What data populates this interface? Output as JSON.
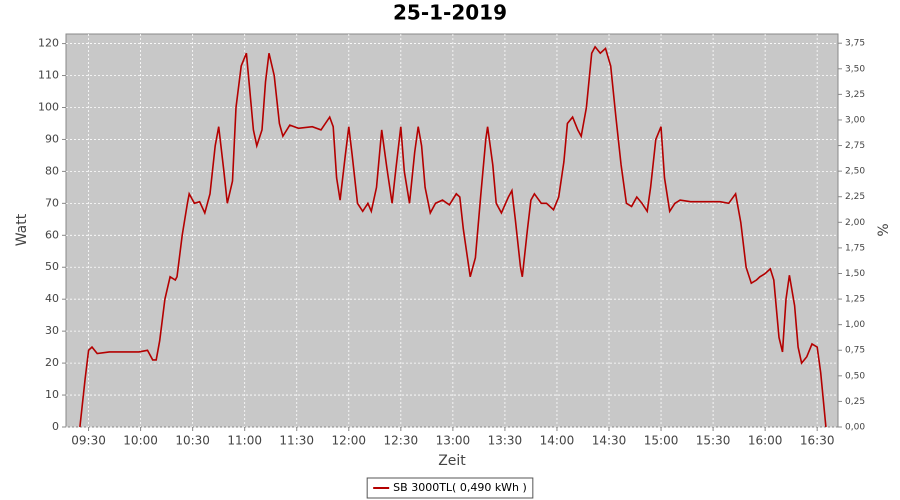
{
  "chart_data": {
    "type": "line",
    "title": "25-1-2019",
    "x_label": "Zeit",
    "y_label": "Watt",
    "y2_label": "%",
    "x": [
      "09:25",
      "09:28",
      "09:30",
      "09:32",
      "09:35",
      "09:42",
      "09:59",
      "10:04",
      "10:07",
      "10:09",
      "10:11",
      "10:14",
      "10:17",
      "10:20",
      "10:21",
      "10:24",
      "10:27",
      "10:28",
      "10:31",
      "10:34",
      "10:37",
      "10:40",
      "10:43",
      "10:45",
      "10:48",
      "10:50",
      "10:53",
      "10:55",
      "10:58",
      "11:01",
      "11:03",
      "11:05",
      "11:07",
      "11:10",
      "11:12",
      "11:14",
      "11:17",
      "11:20",
      "11:22",
      "11:26",
      "11:31",
      "11:39",
      "11:44",
      "11:49",
      "11:51",
      "11:53",
      "11:55",
      "11:58",
      "12:00",
      "12:02",
      "12:05",
      "12:08",
      "12:11",
      "12:13",
      "12:16",
      "12:19",
      "12:22",
      "12:25",
      "12:27",
      "12:30",
      "12:32",
      "12:35",
      "12:38",
      "12:40",
      "12:42",
      "12:44",
      "12:47",
      "12:50",
      "12:54",
      "12:58",
      "13:02",
      "13:04",
      "13:06",
      "13:10",
      "13:13",
      "13:16",
      "13:19",
      "13:20",
      "13:23",
      "13:25",
      "13:28",
      "13:32",
      "13:34",
      "13:36",
      "13:39",
      "13:40",
      "13:43",
      "13:45",
      "13:47",
      "13:51",
      "13:54",
      "13:58",
      "14:01",
      "14:04",
      "14:06",
      "14:09",
      "14:12",
      "14:14",
      "14:17",
      "14:20",
      "14:22",
      "14:25",
      "14:28",
      "14:31",
      "14:34",
      "14:37",
      "14:40",
      "14:43",
      "14:46",
      "14:49",
      "14:52",
      "14:54",
      "14:57",
      "15:00",
      "15:02",
      "15:05",
      "15:08",
      "15:11",
      "15:17",
      "15:34",
      "15:39",
      "15:43",
      "15:46",
      "15:49",
      "15:52",
      "15:55",
      "15:57",
      "16:00",
      "16:03",
      "16:05",
      "16:08",
      "16:10",
      "16:12",
      "16:14",
      "16:17",
      "16:19",
      "16:21",
      "16:24",
      "16:27",
      "16:30",
      "16:32",
      "16:35"
    ],
    "series": [
      {
        "name": "SB 3000TL( 0,490 kWh )",
        "color": "#b40000",
        "values": [
          0,
          15,
          24,
          25,
          23,
          23.5,
          23.5,
          24,
          21,
          21,
          27,
          40,
          47,
          46,
          47,
          60,
          70,
          73,
          70,
          70.5,
          67,
          73,
          88,
          94,
          80,
          70,
          77,
          100,
          113,
          117,
          105,
          93,
          88,
          93,
          108,
          117,
          110,
          95,
          91,
          94.5,
          93.5,
          94,
          93,
          97,
          94,
          78,
          71,
          85,
          94,
          85,
          70,
          67.5,
          70,
          67.5,
          75,
          93,
          81,
          70,
          80,
          94,
          80,
          70,
          86,
          94,
          88,
          75,
          67,
          70,
          71,
          69.5,
          73,
          72,
          62,
          47,
          53,
          72,
          90,
          94,
          82,
          70,
          67,
          72,
          74,
          65,
          50,
          47,
          62,
          71,
          73,
          70,
          70,
          68,
          72,
          83,
          95,
          97,
          93,
          91,
          100,
          117,
          119,
          117,
          118.5,
          113,
          97,
          82,
          70,
          69,
          72,
          70,
          67.5,
          75,
          90,
          94,
          78,
          67.5,
          70,
          71,
          70.5,
          70.5,
          70,
          73,
          64,
          50,
          45,
          46,
          47,
          48,
          49.5,
          46,
          28,
          23.5,
          40,
          47.5,
          38,
          25,
          20,
          22,
          26,
          25,
          17,
          0
        ]
      }
    ],
    "xlim": [
      "09:17",
      "16:42"
    ],
    "xticks": [
      "09:30",
      "10:00",
      "10:30",
      "11:00",
      "11:30",
      "12:00",
      "12:30",
      "13:00",
      "13:30",
      "14:00",
      "14:30",
      "15:00",
      "15:30",
      "16:00",
      "16:30"
    ],
    "ylim": [
      0,
      123
    ],
    "yticks": [
      0,
      10,
      20,
      30,
      40,
      50,
      60,
      70,
      80,
      90,
      100,
      110,
      120
    ],
    "y2lim": [
      0,
      3.84
    ],
    "y2ticks": [
      {
        "value": 0,
        "label": "0,00"
      },
      {
        "value": 0.25,
        "label": "0,25"
      },
      {
        "value": 0.5,
        "label": "0,50"
      },
      {
        "value": 0.75,
        "label": "0,75"
      },
      {
        "value": 1,
        "label": "1,00"
      },
      {
        "value": 1.25,
        "label": "1,25"
      },
      {
        "value": 1.5,
        "label": "1,50"
      },
      {
        "value": 1.75,
        "label": "1,75"
      },
      {
        "value": 2,
        "label": "2,00"
      },
      {
        "value": 2.25,
        "label": "2,25"
      },
      {
        "value": 2.5,
        "label": "2,50"
      },
      {
        "value": 2.75,
        "label": "2,75"
      },
      {
        "value": 3,
        "label": "3,00"
      },
      {
        "value": 3.25,
        "label": "3,25"
      },
      {
        "value": 3.5,
        "label": "3,50"
      },
      {
        "value": 3.75,
        "label": "3,75"
      }
    ],
    "grid": true,
    "legend": "bottom",
    "plot_background": "#c8c8c8"
  }
}
